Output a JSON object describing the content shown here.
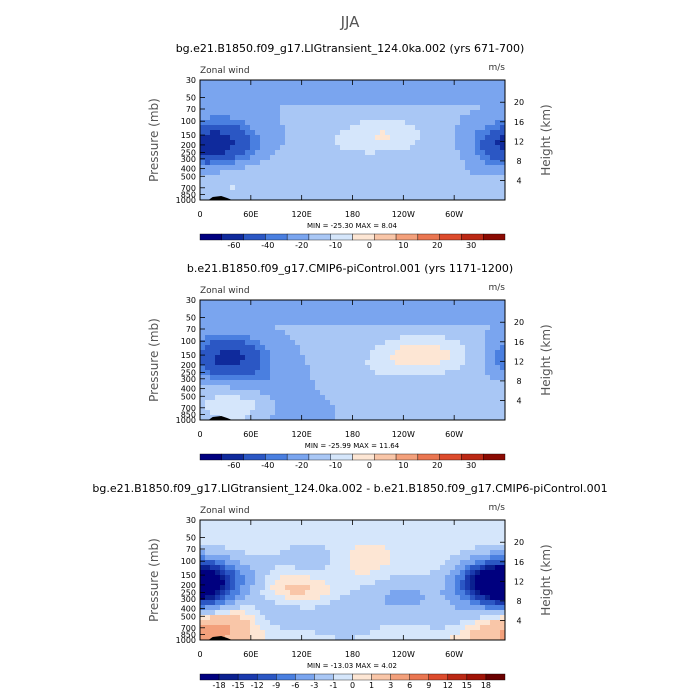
{
  "suptitle": "JJA",
  "chart_data": [
    {
      "type": "heatmap",
      "title": "bg.e21.B1850.f09_g17.LIGtransient_124.0ka.002 (yrs 671-700)",
      "left_label": "Zonal wind",
      "units": "m/s",
      "ylabel": "Pressure (mb)",
      "ylabel_right": "Height (km)",
      "x_ticks": [
        "0",
        "60E",
        "120E",
        "180",
        "120W",
        "60W"
      ],
      "y_ticks": [
        "30",
        "50",
        "70",
        "100",
        "150",
        "200",
        "250",
        "300",
        "400",
        "500",
        "700",
        "850",
        "1000"
      ],
      "height_ticks": [
        "20",
        "16",
        "12",
        "8",
        "4"
      ],
      "min_max": "MIN = -25.30   MAX =   8.04",
      "colorbar_labels": [
        "-60",
        "-40",
        "-20",
        "-10",
        "0",
        "10",
        "20",
        "30"
      ],
      "colorbar_colors": [
        "#00007f",
        "#0f2a9c",
        "#2b57c4",
        "#4a7fe0",
        "#7aa5ef",
        "#a9c7f5",
        "#d5e6fb",
        "#fde6d4",
        "#f9c6a8",
        "#f3a07b",
        "#ea7651",
        "#dd4b2c",
        "#bb2814",
        "#8b0a02"
      ],
      "blobs": [
        {
          "lon": 25,
          "p": 200,
          "v": -12
        },
        {
          "lon": 25,
          "p": 175,
          "v": -18
        },
        {
          "lon": -5,
          "p": 220,
          "v": -10
        },
        {
          "lon": 355,
          "p": 200,
          "v": -8
        },
        {
          "lon": 40,
          "p": 70,
          "v": -2
        },
        {
          "lon": 200,
          "p": 50,
          "v": -2
        },
        {
          "lon": 190,
          "p": 150,
          "v": 5
        },
        {
          "lon": 240,
          "p": 150,
          "v": 6
        },
        {
          "lon": 215,
          "p": 150,
          "v": 7
        },
        {
          "lon": 160,
          "p": 220,
          "v": 4
        },
        {
          "lon": 320,
          "p": 250,
          "v": 3
        },
        {
          "lon": 30,
          "p": 600,
          "v": 4
        },
        {
          "lon": 80,
          "p": 500,
          "v": 3
        },
        {
          "lon": 40,
          "p": 800,
          "v": 3
        }
      ]
    },
    {
      "type": "heatmap",
      "title": "b.e21.B1850.f09_g17.CMIP6-piControl.001 (yrs 1171-1200)",
      "left_label": "Zonal wind",
      "units": "m/s",
      "ylabel": "Pressure (mb)",
      "ylabel_right": "Height (km)",
      "x_ticks": [
        "0",
        "60E",
        "120E",
        "180",
        "120W",
        "60W"
      ],
      "y_ticks": [
        "30",
        "50",
        "70",
        "100",
        "150",
        "200",
        "250",
        "300",
        "400",
        "500",
        "700",
        "850",
        "1000"
      ],
      "height_ticks": [
        "20",
        "16",
        "12",
        "8",
        "4"
      ],
      "min_max": "MIN = -25.99   MAX =  11.64",
      "colorbar_labels": [
        "-60",
        "-40",
        "-20",
        "-10",
        "0",
        "10",
        "20",
        "30"
      ],
      "colorbar_colors": [
        "#00007f",
        "#0f2a9c",
        "#2b57c4",
        "#4a7fe0",
        "#7aa5ef",
        "#a9c7f5",
        "#d5e6fb",
        "#fde6d4",
        "#f9c6a8",
        "#f3a07b",
        "#ea7651",
        "#dd4b2c",
        "#bb2814",
        "#8b0a02"
      ],
      "blobs": [
        {
          "lon": 30,
          "p": 180,
          "v": -15
        },
        {
          "lon": 35,
          "p": 150,
          "v": -20
        },
        {
          "lon": 70,
          "p": 300,
          "v": -6
        },
        {
          "lon": 100,
          "p": 800,
          "v": -5
        },
        {
          "lon": 230,
          "p": 150,
          "v": 8
        },
        {
          "lon": 260,
          "p": 150,
          "v": 10
        },
        {
          "lon": 290,
          "p": 150,
          "v": 9
        },
        {
          "lon": 200,
          "p": 250,
          "v": 4
        },
        {
          "lon": 40,
          "p": 600,
          "v": 5
        },
        {
          "lon": 60,
          "p": 700,
          "v": 6
        },
        {
          "lon": 10,
          "p": 850,
          "v": 3
        },
        {
          "lon": 0,
          "p": 400,
          "v": 3
        }
      ]
    },
    {
      "type": "heatmap",
      "title": "bg.e21.B1850.f09_g17.LIGtransient_124.0ka.002 - b.e21.B1850.f09_g17.CMIP6-piControl.001",
      "left_label": "Zonal wind",
      "units": "m/s",
      "ylabel": "Pressure (mb)",
      "ylabel_right": "Height (km)",
      "x_ticks": [
        "0",
        "60E",
        "120E",
        "180",
        "120W",
        "60W"
      ],
      "y_ticks": [
        "30",
        "50",
        "70",
        "100",
        "150",
        "200",
        "250",
        "300",
        "400",
        "500",
        "700",
        "850",
        "1000"
      ],
      "height_ticks": [
        "20",
        "16",
        "12",
        "8",
        "4"
      ],
      "min_max": "MIN = -13.03   MAX =   4.02",
      "colorbar_labels": [
        "-18",
        "-15",
        "-12",
        "-9",
        "-6",
        "-3",
        "-1",
        "0",
        "1",
        "3",
        "6",
        "9",
        "12",
        "15",
        "18"
      ],
      "colorbar_colors": [
        "#00007f",
        "#0a2090",
        "#1a3aae",
        "#2b57c4",
        "#4a7fe0",
        "#7aa5ef",
        "#a9c7f5",
        "#d5e6fb",
        "#fde6d4",
        "#f9c6a8",
        "#f3a07b",
        "#ea7651",
        "#dd4b2c",
        "#bb2814",
        "#a01206",
        "#6a0000"
      ],
      "blobs": [
        {
          "lon": 0,
          "p": 200,
          "v": -8
        },
        {
          "lon": 5,
          "p": 180,
          "v": -12
        },
        {
          "lon": 350,
          "p": 200,
          "v": -10
        },
        {
          "lon": 345,
          "p": 180,
          "v": -13
        },
        {
          "lon": 60,
          "p": 150,
          "v": -2
        },
        {
          "lon": 130,
          "p": 100,
          "v": -2
        },
        {
          "lon": 230,
          "p": 300,
          "v": -3
        },
        {
          "lon": 270,
          "p": 250,
          "v": -2
        },
        {
          "lon": 100,
          "p": 400,
          "v": -3
        },
        {
          "lon": 170,
          "p": 500,
          "v": -3
        },
        {
          "lon": 300,
          "p": 500,
          "v": -2
        },
        {
          "lon": 100,
          "p": 200,
          "v": 2
        },
        {
          "lon": 120,
          "p": 300,
          "v": 2
        },
        {
          "lon": 30,
          "p": 700,
          "v": 3
        },
        {
          "lon": 10,
          "p": 850,
          "v": 2
        },
        {
          "lon": 330,
          "p": 850,
          "v": 2
        },
        {
          "lon": 190,
          "p": 100,
          "v": 1
        },
        {
          "lon": 300,
          "p": 200,
          "v": 1
        }
      ]
    }
  ]
}
